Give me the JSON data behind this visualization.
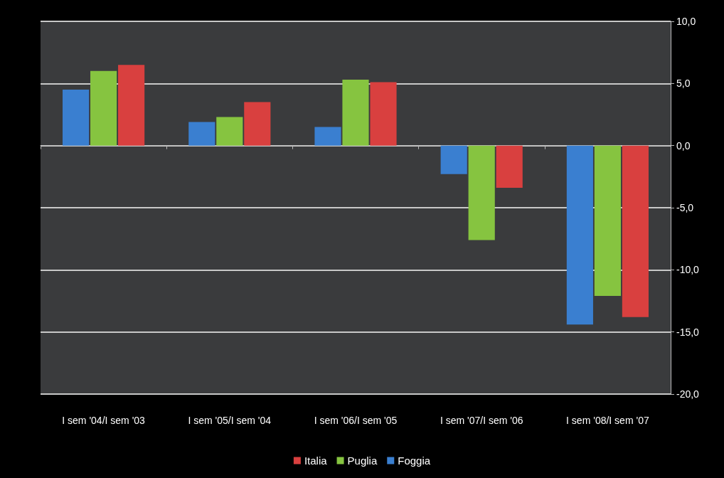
{
  "chart_data": {
    "type": "bar",
    "categories": [
      "I sem '04/I sem '03",
      "I sem '05/I sem '04",
      "I sem '06/I sem '05",
      "I sem '07/I sem '06",
      "I sem '08/I sem '07"
    ],
    "series": [
      {
        "name": "Foggia",
        "color": "#3a7fd0",
        "values": [
          4.5,
          1.9,
          1.5,
          -2.3,
          -14.4
        ]
      },
      {
        "name": "Puglia",
        "color": "#86c440",
        "values": [
          6.0,
          2.3,
          5.3,
          -7.6,
          -12.1
        ]
      },
      {
        "name": "Italia",
        "color": "#d9403f",
        "values": [
          6.5,
          3.5,
          5.1,
          -3.4,
          -13.8
        ]
      }
    ],
    "ylim": [
      -20,
      10
    ],
    "yticks": [
      {
        "value": -20,
        "label": "-20,0"
      },
      {
        "value": -15,
        "label": "-15,0"
      },
      {
        "value": -10,
        "label": "-10,0"
      },
      {
        "value": -5,
        "label": "-5,0"
      },
      {
        "value": 0,
        "label": "0,0"
      },
      {
        "value": 5,
        "label": "5,0"
      },
      {
        "value": 10,
        "label": "10,0"
      }
    ],
    "grid": "y",
    "legend": "bottom"
  }
}
